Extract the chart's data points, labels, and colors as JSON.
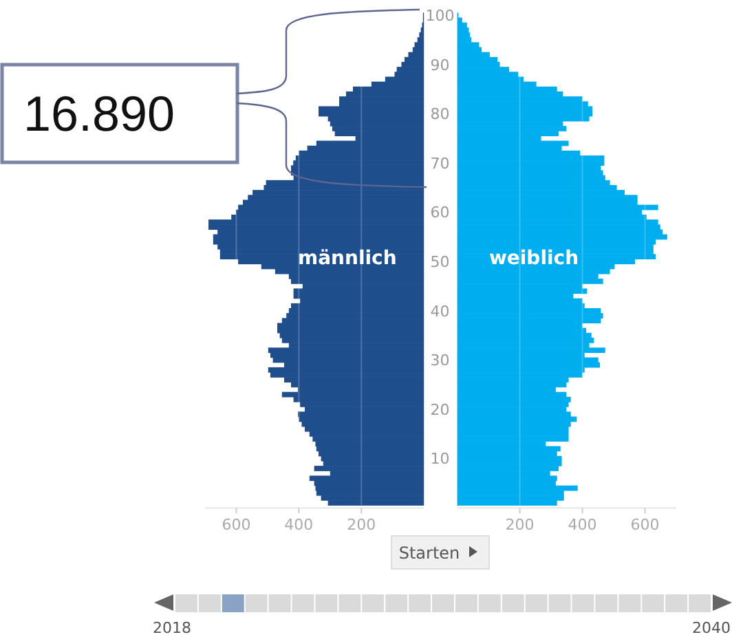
{
  "chart_data": [
    {
      "type": "bar",
      "orientation": "horizontal",
      "categories": [
        "100",
        null,
        null,
        null,
        null,
        null,
        null,
        null,
        null,
        null,
        "90",
        null,
        null,
        null,
        null,
        null,
        null,
        null,
        null,
        null,
        "80",
        null,
        null,
        null,
        null,
        null,
        null,
        null,
        null,
        null,
        "70",
        null,
        null,
        null,
        null,
        null,
        null,
        null,
        null,
        null,
        "60",
        null,
        null,
        null,
        null,
        null,
        null,
        null,
        null,
        null,
        "50",
        null,
        null,
        null,
        null,
        null,
        null,
        null,
        null,
        null,
        "40",
        null,
        null,
        null,
        null,
        null,
        null,
        null,
        null,
        null,
        "30",
        null,
        null,
        null,
        null,
        null,
        null,
        null,
        null,
        null,
        "20",
        null,
        null,
        null,
        null,
        null,
        null,
        null,
        null,
        null,
        "10",
        null,
        null,
        null,
        null,
        null,
        null,
        null,
        null,
        null
      ],
      "series": [
        {
          "name": "männlich",
          "color": "#1f4e8c",
          "values": [
            3,
            3,
            6,
            10,
            15,
            21,
            30,
            36,
            50,
            62,
            72,
            87,
            94,
            124,
            168,
            227,
            249,
            271,
            271,
            337,
            337,
            307,
            300,
            293,
            285,
            219,
            344,
            373,
            400,
            410,
            418,
            425,
            425,
            417,
            505,
            512,
            548,
            563,
            579,
            594,
            601,
            616,
            689,
            689,
            660,
            674,
            674,
            660,
            652,
            652,
            594,
            520,
            476,
            432,
            425,
            388,
            417,
            417,
            396,
            425,
            432,
            440,
            454,
            469,
            469,
            461,
            454,
            432,
            498,
            491,
            483,
            447,
            498,
            491,
            447,
            425,
            403,
            454,
            417,
            396,
            381,
            403,
            400,
            391,
            381,
            366,
            356,
            347,
            344,
            337,
            329,
            322,
            351,
            300,
            366,
            351,
            347,
            344,
            329,
            307
          ]
        }
      ],
      "xlim": [
        700,
        0
      ],
      "xticks": [
        600,
        400,
        200
      ],
      "grid": "x",
      "tick_labels": "x",
      "annotations": [
        "16.890"
      ]
    },
    {
      "type": "bar",
      "orientation": "horizontal",
      "categories": [
        "100",
        null,
        null,
        null,
        null,
        null,
        null,
        null,
        null,
        null,
        "90",
        null,
        null,
        null,
        null,
        null,
        null,
        null,
        null,
        null,
        "80",
        null,
        null,
        null,
        null,
        null,
        null,
        null,
        null,
        null,
        "70",
        null,
        null,
        null,
        null,
        null,
        null,
        null,
        null,
        null,
        "60",
        null,
        null,
        null,
        null,
        null,
        null,
        null,
        null,
        null,
        "50",
        null,
        null,
        null,
        null,
        null,
        null,
        null,
        null,
        null,
        "40",
        null,
        null,
        null,
        null,
        null,
        null,
        null,
        null,
        null,
        "30",
        null,
        null,
        null,
        null,
        null,
        null,
        null,
        null,
        null,
        "20",
        null,
        null,
        null,
        null,
        null,
        null,
        null,
        null,
        null,
        "10",
        null,
        null,
        null,
        null,
        null,
        null,
        null,
        null,
        null
      ],
      "series": [
        {
          "name": "weiblich",
          "color": "#00adef",
          "values": [
            4,
            16,
            31,
            37,
            41,
            45,
            70,
            78,
            104,
            129,
            136,
            166,
            195,
            212,
            253,
            319,
            338,
            400,
            418,
            432,
            432,
            422,
            338,
            349,
            324,
            268,
            356,
            334,
            393,
            470,
            470,
            459,
            466,
            473,
            488,
            510,
            535,
            576,
            576,
            642,
            590,
            605,
            642,
            649,
            656,
            671,
            634,
            627,
            627,
            634,
            568,
            503,
            488,
            451,
            466,
            400,
            415,
            371,
            400,
            407,
            459,
            466,
            459,
            400,
            412,
            429,
            437,
            422,
            473,
            407,
            451,
            456,
            407,
            400,
            356,
            349,
            315,
            349,
            363,
            356,
            349,
            363,
            382,
            363,
            356,
            356,
            356,
            283,
            330,
            319,
            334,
            334,
            324,
            297,
            319,
            315,
            385,
            341,
            341,
            319
          ]
        }
      ],
      "xlim": [
        0,
        700
      ],
      "xticks": [
        200,
        400,
        600
      ],
      "grid": "x",
      "annotations": [
        "Starten",
        "2018",
        "2040"
      ]
    }
  ]
}
